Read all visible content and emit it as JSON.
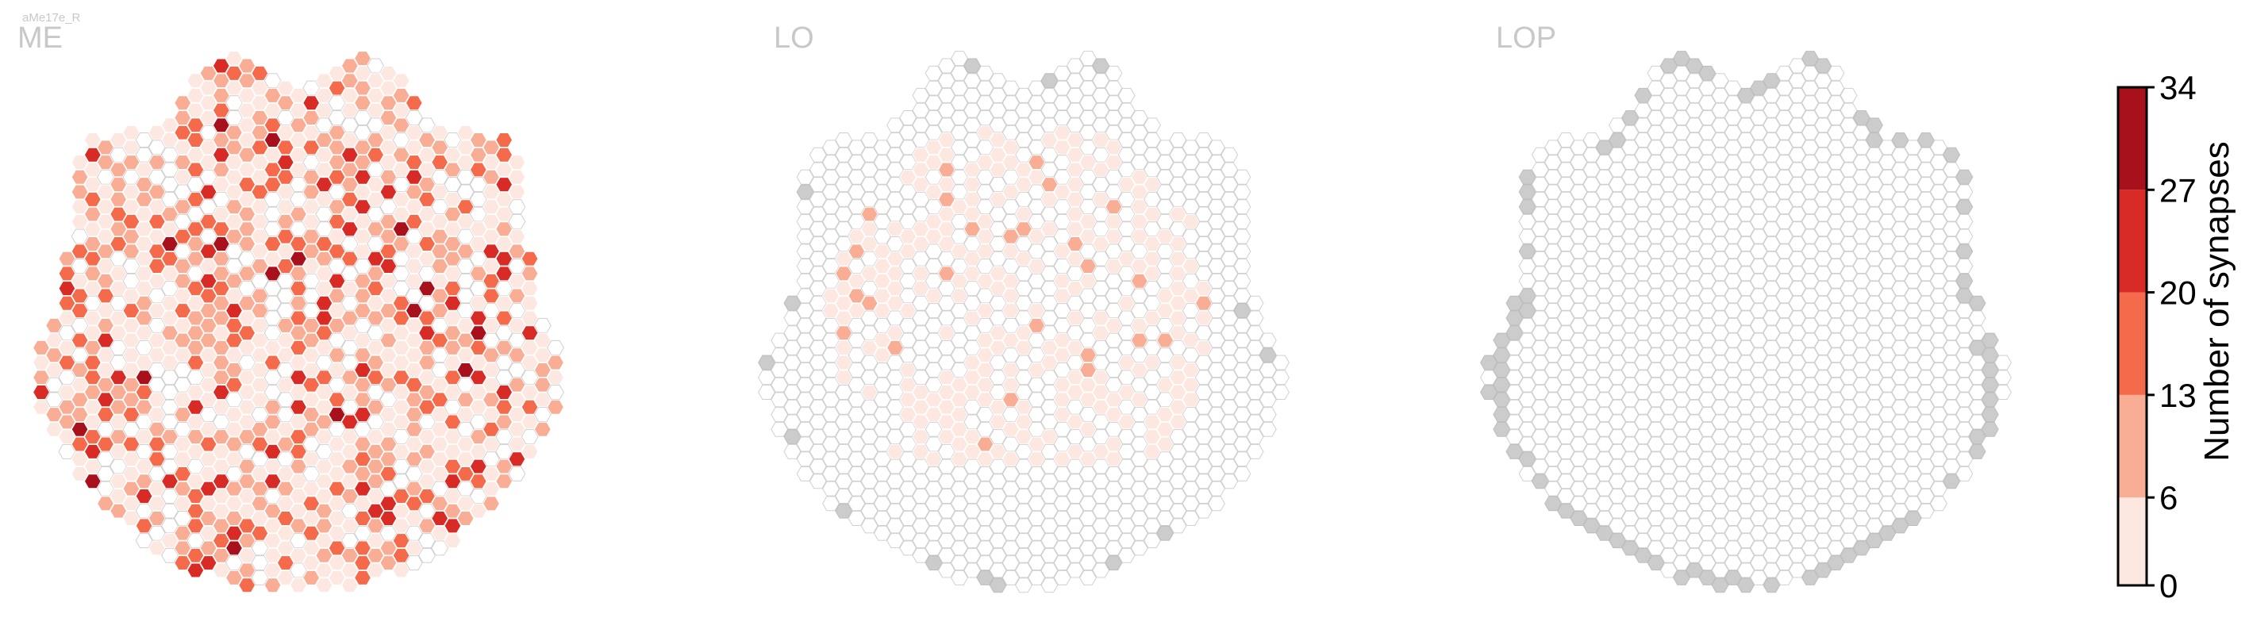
{
  "figure": {
    "cell_type_label": "aMe17e_R"
  },
  "colors": {
    "empty_stroke": "#d0d0d0",
    "boundary_fill": "#cccccc",
    "region_label": "#c8c8c8",
    "axis": "#000000"
  },
  "chart_data": {
    "type": "heatmap",
    "title": "aMe17e_R",
    "panels": [
      {
        "name": "ME",
        "values_range": [
          0,
          34
        ],
        "density": "high"
      },
      {
        "name": "LO",
        "values_range": [
          0,
          6
        ],
        "density": "low"
      },
      {
        "name": "LOP",
        "values_range": [
          0,
          0
        ],
        "density": "none"
      }
    ],
    "colorbar": {
      "label": "Number of synapses",
      "ticks": [
        "0",
        "6",
        "13",
        "20",
        "27",
        "34"
      ],
      "bins": [
        {
          "from": 0,
          "to": 6,
          "color": "#fde8e1"
        },
        {
          "from": 6,
          "to": 13,
          "color": "#f9ad94"
        },
        {
          "from": 13,
          "to": 20,
          "color": "#f46a4b"
        },
        {
          "from": 20,
          "to": 27,
          "color": "#d92b26"
        },
        {
          "from": 27,
          "to": 34,
          "color": "#a8111c"
        }
      ],
      "vmin": 0,
      "vmax": 34
    }
  }
}
